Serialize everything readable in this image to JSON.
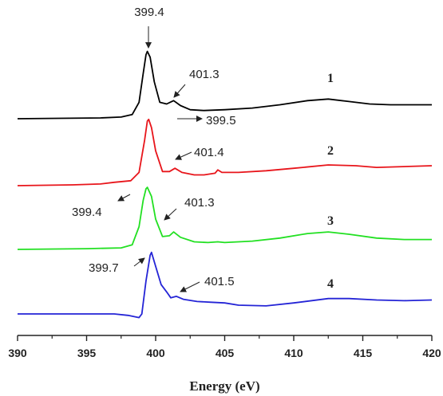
{
  "chart_data": {
    "type": "line",
    "xlabel": "Energy (eV)",
    "ylabel": "",
    "xlim": [
      390,
      420
    ],
    "x_ticks": [
      "390",
      "395",
      "400",
      "405",
      "410",
      "415",
      "420"
    ],
    "series": [
      {
        "name": "1",
        "color": "#000000",
        "points": [
          [
            390,
            0.0
          ],
          [
            396,
            0.01
          ],
          [
            397.5,
            0.02
          ],
          [
            398.3,
            0.05
          ],
          [
            398.8,
            0.2
          ],
          [
            399.1,
            0.55
          ],
          [
            399.3,
            0.78
          ],
          [
            399.4,
            0.82
          ],
          [
            399.6,
            0.75
          ],
          [
            399.9,
            0.45
          ],
          [
            400.3,
            0.2
          ],
          [
            400.8,
            0.18
          ],
          [
            401.3,
            0.22
          ],
          [
            401.8,
            0.16
          ],
          [
            402.5,
            0.11
          ],
          [
            403.5,
            0.1
          ],
          [
            405,
            0.11
          ],
          [
            407,
            0.13
          ],
          [
            409,
            0.17
          ],
          [
            411,
            0.22
          ],
          [
            412.5,
            0.24
          ],
          [
            414,
            0.21
          ],
          [
            415.5,
            0.18
          ],
          [
            417,
            0.17
          ],
          [
            420,
            0.17
          ]
        ]
      },
      {
        "name": "2",
        "color": "#e8151b",
        "points": [
          [
            390,
            0.0
          ],
          [
            394,
            0.01
          ],
          [
            396,
            0.02
          ],
          [
            397,
            0.04
          ],
          [
            398.2,
            0.06
          ],
          [
            398.8,
            0.16
          ],
          [
            399.2,
            0.55
          ],
          [
            399.4,
            0.78
          ],
          [
            399.5,
            0.8
          ],
          [
            399.7,
            0.7
          ],
          [
            400,
            0.42
          ],
          [
            400.5,
            0.17
          ],
          [
            401,
            0.17
          ],
          [
            401.4,
            0.21
          ],
          [
            401.9,
            0.16
          ],
          [
            402.8,
            0.13
          ],
          [
            403.5,
            0.13
          ],
          [
            404.3,
            0.15
          ],
          [
            404.5,
            0.19
          ],
          [
            404.8,
            0.16
          ],
          [
            406,
            0.16
          ],
          [
            408,
            0.18
          ],
          [
            410,
            0.21
          ],
          [
            412.5,
            0.25
          ],
          [
            414.5,
            0.24
          ],
          [
            416,
            0.22
          ],
          [
            420,
            0.24
          ]
        ]
      },
      {
        "name": "3",
        "color": "#22e022",
        "points": [
          [
            390,
            0.0
          ],
          [
            395,
            0.01
          ],
          [
            397.5,
            0.02
          ],
          [
            398.3,
            0.06
          ],
          [
            398.8,
            0.3
          ],
          [
            399.1,
            0.65
          ],
          [
            399.3,
            0.8
          ],
          [
            399.4,
            0.82
          ],
          [
            399.7,
            0.7
          ],
          [
            400,
            0.4
          ],
          [
            400.5,
            0.17
          ],
          [
            401,
            0.18
          ],
          [
            401.3,
            0.23
          ],
          [
            401.8,
            0.16
          ],
          [
            402.8,
            0.1
          ],
          [
            403.8,
            0.09
          ],
          [
            404.5,
            0.1
          ],
          [
            405,
            0.09
          ],
          [
            407,
            0.11
          ],
          [
            409,
            0.15
          ],
          [
            411,
            0.21
          ],
          [
            412.5,
            0.23
          ],
          [
            414,
            0.2
          ],
          [
            416,
            0.15
          ],
          [
            418,
            0.13
          ],
          [
            420,
            0.13
          ]
        ]
      },
      {
        "name": "4",
        "color": "#2424d6",
        "points": [
          [
            390,
            0.0
          ],
          [
            395,
            0.0
          ],
          [
            397,
            0.0
          ],
          [
            398,
            -0.02
          ],
          [
            398.8,
            -0.05
          ],
          [
            399,
            0.0
          ],
          [
            399.3,
            0.45
          ],
          [
            399.6,
            0.8
          ],
          [
            399.7,
            0.84
          ],
          [
            400,
            0.65
          ],
          [
            400.4,
            0.4
          ],
          [
            400.8,
            0.3
          ],
          [
            401.1,
            0.22
          ],
          [
            401.5,
            0.24
          ],
          [
            402,
            0.2
          ],
          [
            403,
            0.17
          ],
          [
            404,
            0.16
          ],
          [
            405,
            0.15
          ],
          [
            406,
            0.12
          ],
          [
            408,
            0.11
          ],
          [
            410,
            0.15
          ],
          [
            412.5,
            0.21
          ],
          [
            414,
            0.21
          ],
          [
            416,
            0.19
          ],
          [
            418,
            0.18
          ],
          [
            420,
            0.19
          ]
        ]
      }
    ],
    "annotations": [
      {
        "series": "1",
        "label": "399.4"
      },
      {
        "series": "1",
        "label": "401.3"
      },
      {
        "series": "2",
        "label": "399.5"
      },
      {
        "series": "2",
        "label": "401.4"
      },
      {
        "series": "3",
        "label": "399.4"
      },
      {
        "series": "3",
        "label": "401.3"
      },
      {
        "series": "4",
        "label": "399.7"
      },
      {
        "series": "4",
        "label": "401.5"
      }
    ],
    "grid": false,
    "legend": "none"
  }
}
